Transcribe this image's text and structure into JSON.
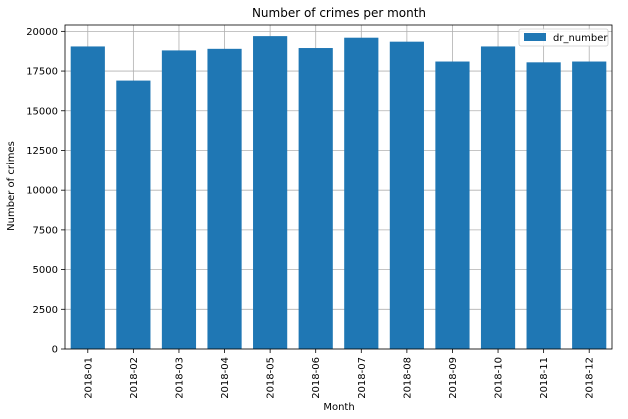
{
  "chart_data": {
    "type": "bar",
    "title": "Number of crimes per month",
    "xlabel": "Month",
    "ylabel": "Number of crimes",
    "categories": [
      "2018-01",
      "2018-02",
      "2018-03",
      "2018-04",
      "2018-05",
      "2018-06",
      "2018-07",
      "2018-08",
      "2018-09",
      "2018-10",
      "2018-11",
      "2018-12"
    ],
    "series": [
      {
        "name": "dr_number",
        "color": "#1f77b4",
        "values": [
          19050,
          16900,
          18800,
          18900,
          19700,
          18950,
          19600,
          19350,
          18100,
          19050,
          18050,
          18100
        ]
      }
    ],
    "ylim": [
      0,
      20400
    ],
    "yticks": [
      0,
      2500,
      5000,
      7500,
      10000,
      12500,
      15000,
      17500,
      20000
    ],
    "grid": true,
    "legend": "top-right"
  }
}
